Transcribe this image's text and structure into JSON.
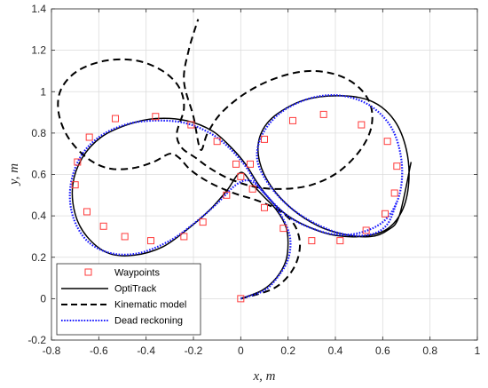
{
  "chart_data": {
    "type": "line",
    "xlabel": "x, m",
    "ylabel": "y, m",
    "xlim": [
      -0.8,
      1.0
    ],
    "ylim": [
      -0.2,
      1.4
    ],
    "xticks": [
      "-0.8",
      "-0.6",
      "-0.4",
      "-0.2",
      "0",
      "0.2",
      "0.4",
      "0.6",
      "0.8",
      "1"
    ],
    "yticks": [
      "-0.2",
      "0",
      "0.2",
      "0.4",
      "0.6",
      "0.8",
      "1",
      "1.2",
      "1.4"
    ],
    "grid": true,
    "legend_position": "bottom-left",
    "series": [
      {
        "name": "Waypoints",
        "style": "markers",
        "color": "#ff3b3b",
        "x": [
          0.0,
          0.18,
          0.3,
          0.42,
          0.53,
          0.61,
          0.65,
          0.66,
          0.62,
          0.51,
          0.35,
          0.22,
          0.1,
          0.04,
          0.0,
          -0.06,
          -0.16,
          -0.24,
          -0.38,
          -0.49,
          -0.58,
          -0.65,
          -0.7,
          -0.69,
          -0.64,
          -0.53,
          -0.36,
          -0.21,
          -0.1,
          -0.02,
          0.05,
          0.1
        ],
        "y": [
          0.0,
          0.34,
          0.28,
          0.28,
          0.33,
          0.41,
          0.51,
          0.64,
          0.76,
          0.84,
          0.89,
          0.86,
          0.77,
          0.65,
          0.59,
          0.5,
          0.37,
          0.3,
          0.28,
          0.3,
          0.35,
          0.42,
          0.55,
          0.66,
          0.78,
          0.87,
          0.88,
          0.84,
          0.76,
          0.65,
          0.53,
          0.44
        ]
      },
      {
        "name": "OptiTrack",
        "style": "solid",
        "color": "#000000",
        "x": [
          0.0,
          0.09,
          0.15,
          0.19,
          0.2,
          0.19,
          0.15,
          0.1,
          0.05,
          0.0,
          -0.06,
          -0.13,
          -0.22,
          -0.33,
          -0.45,
          -0.56,
          -0.65,
          -0.7,
          -0.71,
          -0.67,
          -0.59,
          -0.48,
          -0.36,
          -0.23,
          -0.12,
          -0.04,
          0.02,
          0.07,
          0.13,
          0.2,
          0.28,
          0.38,
          0.5,
          0.61,
          0.68,
          0.71,
          0.7,
          0.65,
          0.56,
          0.43,
          0.27,
          0.14,
          0.08,
          0.08,
          0.13,
          0.22,
          0.33,
          0.44,
          0.55,
          0.62,
          0.67,
          0.72
        ],
        "y": [
          0.0,
          0.04,
          0.1,
          0.18,
          0.27,
          0.35,
          0.43,
          0.49,
          0.55,
          0.61,
          0.52,
          0.43,
          0.34,
          0.25,
          0.21,
          0.22,
          0.3,
          0.41,
          0.55,
          0.68,
          0.78,
          0.84,
          0.87,
          0.86,
          0.81,
          0.73,
          0.65,
          0.56,
          0.47,
          0.4,
          0.35,
          0.31,
          0.3,
          0.33,
          0.42,
          0.56,
          0.72,
          0.86,
          0.95,
          0.98,
          0.96,
          0.88,
          0.78,
          0.66,
          0.54,
          0.43,
          0.35,
          0.31,
          0.3,
          0.33,
          0.4,
          0.66
        ]
      },
      {
        "name": "Kinematic model",
        "style": "dashed",
        "color": "#000000",
        "x": [
          0.0,
          0.14,
          0.22,
          0.25,
          0.23,
          0.17,
          0.08,
          -0.03,
          -0.13,
          -0.21,
          -0.26,
          -0.3,
          -0.37,
          -0.46,
          -0.56,
          -0.65,
          -0.73,
          -0.77,
          -0.76,
          -0.69,
          -0.57,
          -0.44,
          -0.33,
          -0.26,
          -0.24,
          -0.27,
          -0.25,
          -0.19,
          -0.13,
          -0.05,
          0.06,
          0.18,
          0.3,
          0.41,
          0.5,
          0.55,
          0.55,
          0.5,
          0.41,
          0.29,
          0.16,
          0.03,
          -0.08,
          -0.14,
          -0.17,
          -0.2,
          -0.24,
          -0.22,
          -0.18
        ],
        "y": [
          0.0,
          0.05,
          0.14,
          0.25,
          0.35,
          0.42,
          0.47,
          0.51,
          0.56,
          0.62,
          0.68,
          0.7,
          0.66,
          0.63,
          0.63,
          0.68,
          0.78,
          0.9,
          1.01,
          1.1,
          1.15,
          1.15,
          1.1,
          1.02,
          0.92,
          0.8,
          0.73,
          0.68,
          0.63,
          0.58,
          0.54,
          0.53,
          0.55,
          0.61,
          0.71,
          0.82,
          0.93,
          1.02,
          1.08,
          1.1,
          1.07,
          1.0,
          0.9,
          0.8,
          0.72,
          0.88,
          1.05,
          1.2,
          1.35
        ]
      },
      {
        "name": "Dead reckoning",
        "style": "dotted",
        "color": "#1a1aff",
        "x": [
          0.0,
          0.1,
          0.16,
          0.2,
          0.21,
          0.19,
          0.15,
          0.1,
          0.04,
          -0.02,
          -0.1,
          -0.19,
          -0.3,
          -0.43,
          -0.55,
          -0.65,
          -0.71,
          -0.72,
          -0.68,
          -0.6,
          -0.49,
          -0.37,
          -0.24,
          -0.13,
          -0.05,
          0.02,
          0.07,
          0.14,
          0.21,
          0.3,
          0.4,
          0.51,
          0.61,
          0.67,
          0.68,
          0.64,
          0.55,
          0.43,
          0.3,
          0.17,
          0.09,
          0.07,
          0.12,
          0.21,
          0.32,
          0.44,
          0.55,
          0.62,
          0.66
        ],
        "y": [
          0.0,
          0.04,
          0.11,
          0.19,
          0.28,
          0.36,
          0.44,
          0.51,
          0.57,
          0.55,
          0.46,
          0.37,
          0.28,
          0.22,
          0.22,
          0.28,
          0.4,
          0.54,
          0.68,
          0.78,
          0.84,
          0.86,
          0.85,
          0.8,
          0.73,
          0.64,
          0.55,
          0.46,
          0.39,
          0.34,
          0.31,
          0.32,
          0.38,
          0.5,
          0.66,
          0.82,
          0.93,
          0.98,
          0.97,
          0.9,
          0.79,
          0.67,
          0.55,
          0.44,
          0.36,
          0.31,
          0.31,
          0.36,
          0.47
        ]
      }
    ]
  }
}
